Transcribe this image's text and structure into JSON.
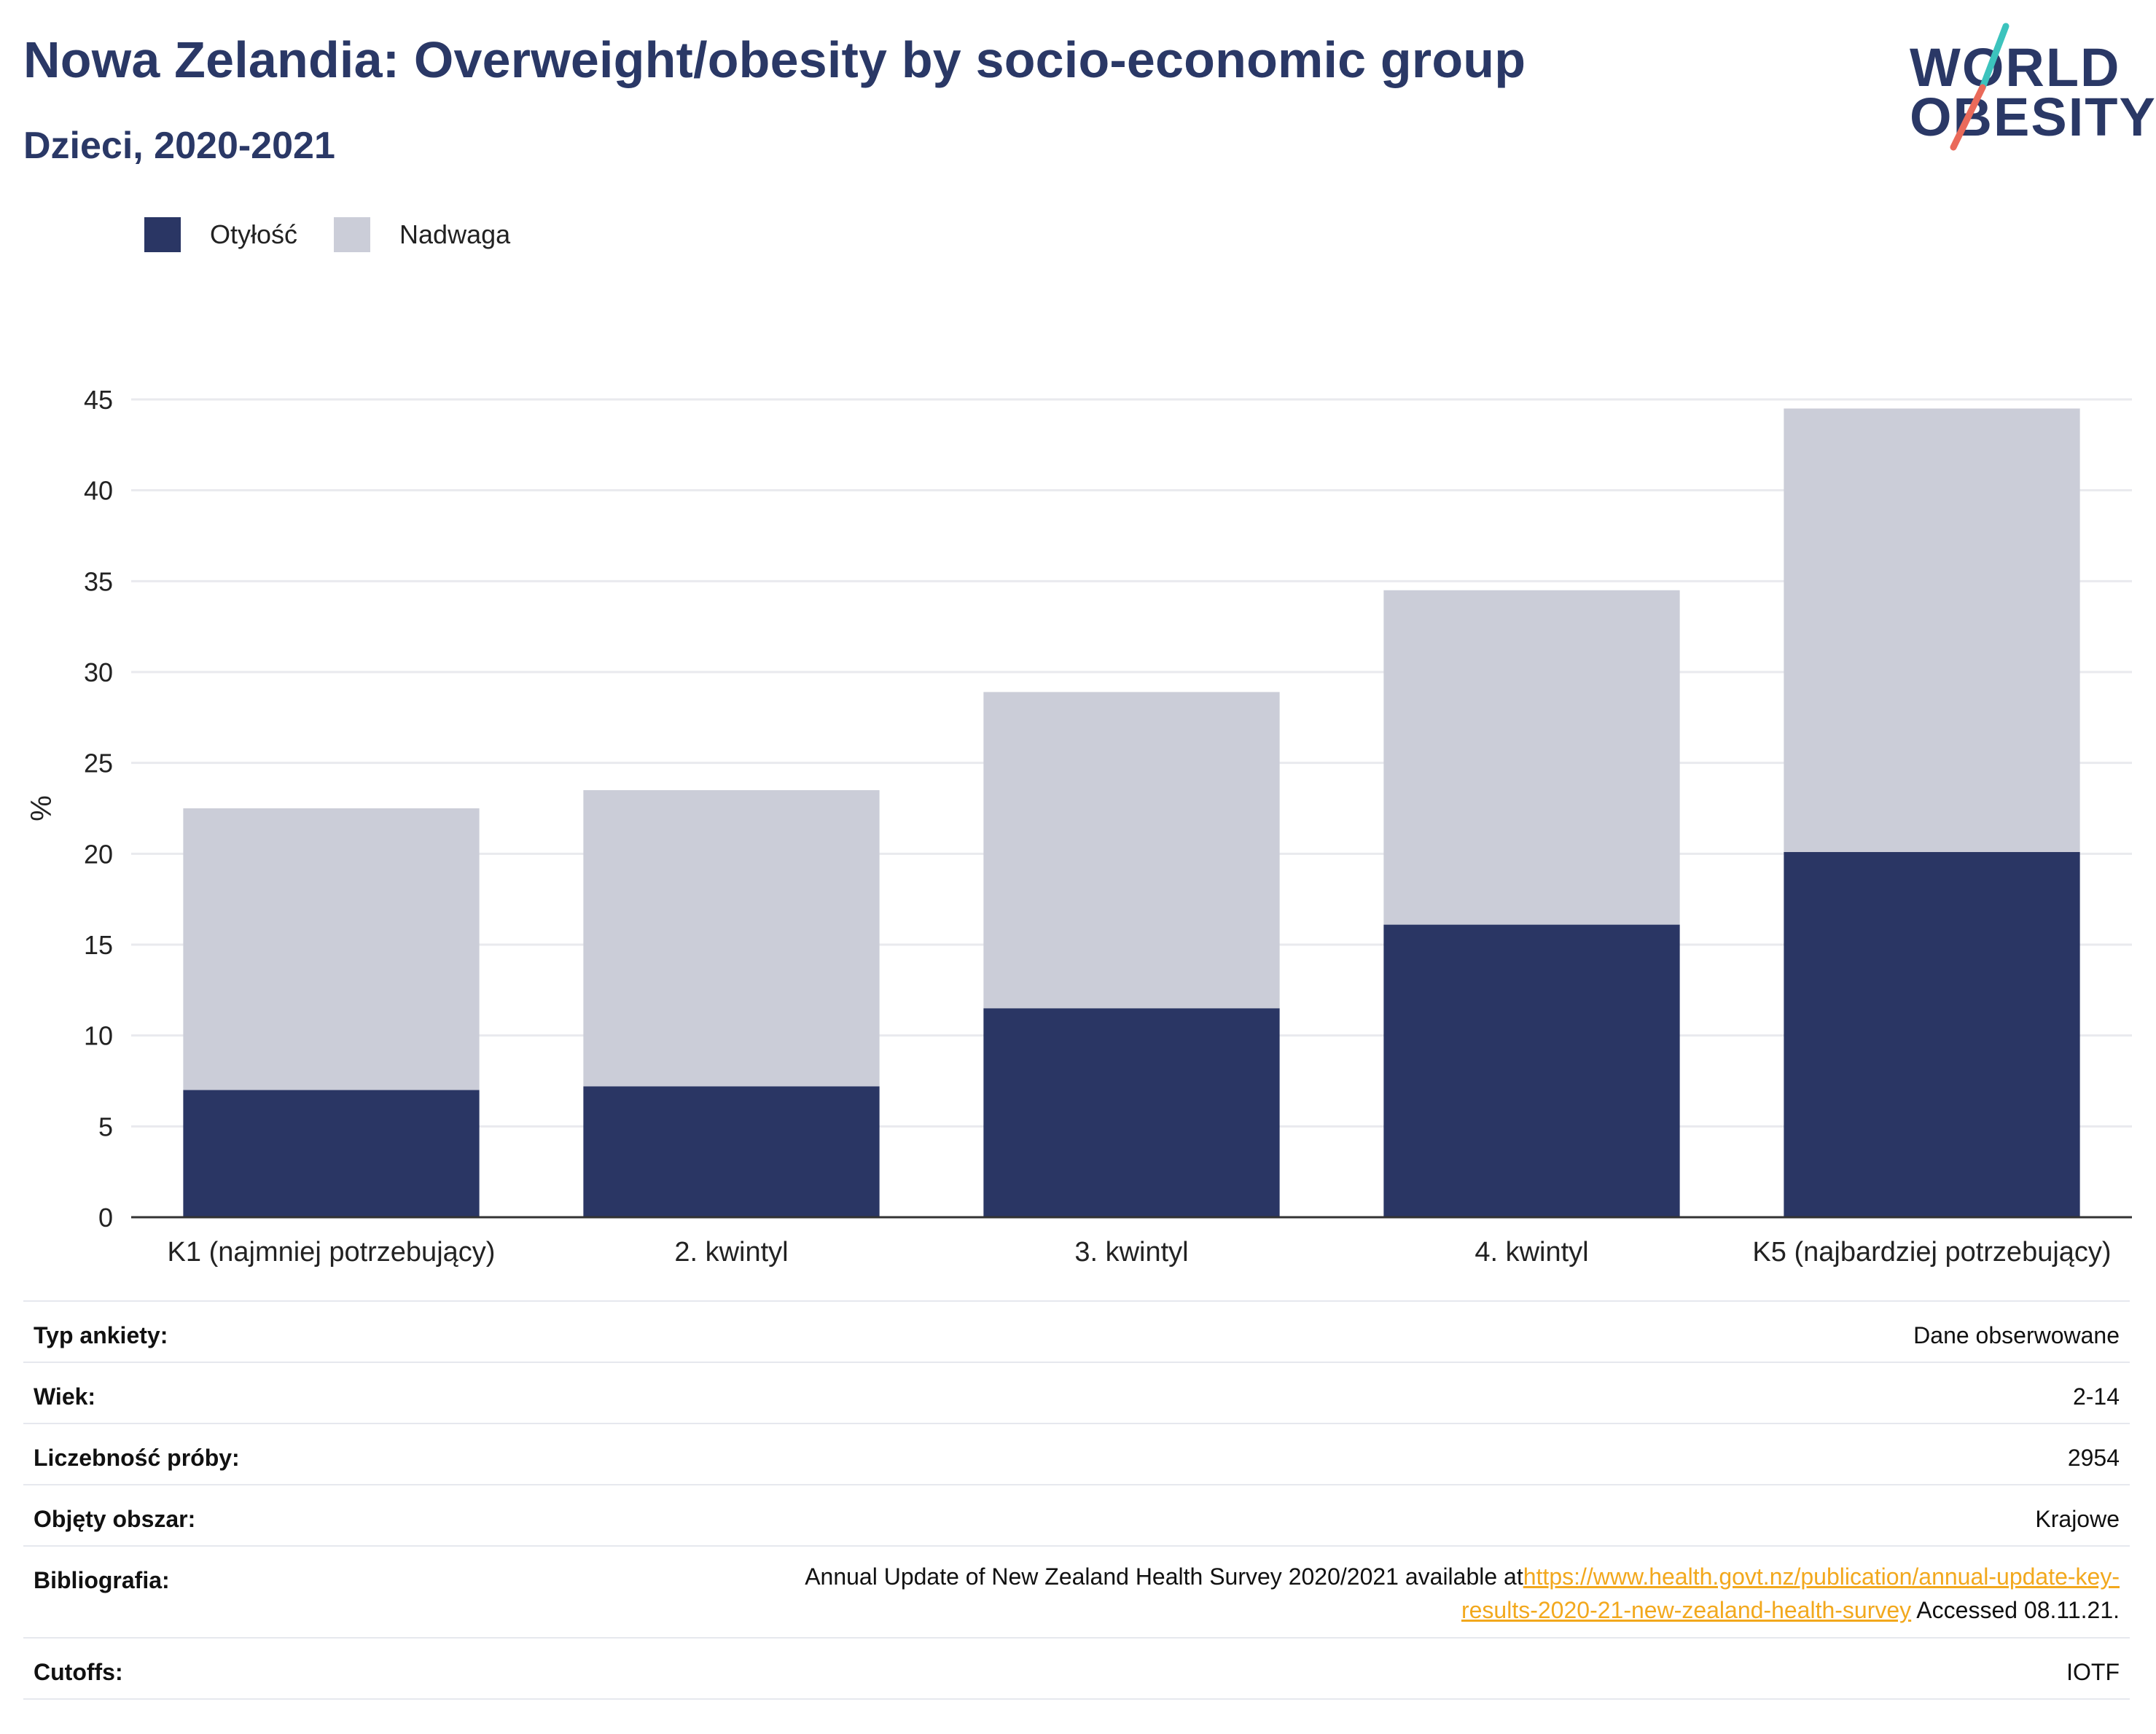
{
  "header": {
    "title": "Nowa Zelandia: Overweight/obesity by socio-economic group",
    "subtitle": "Dzieci, 2020-2021"
  },
  "logo": {
    "line1": "WORLD",
    "line2": "OBESITY"
  },
  "colors": {
    "obesity": "#2a3664",
    "overweight": "#cbcdd8",
    "title": "#2a3866",
    "link": "#f2a81d",
    "logo_teal": "#3cc3bd",
    "logo_coral": "#ea6a5a"
  },
  "legend": [
    {
      "label": "Otyłość",
      "color": "#2a3664"
    },
    {
      "label": "Nadwaga",
      "color": "#cbcdd8"
    }
  ],
  "chart_data": {
    "type": "bar",
    "stacked": true,
    "categories": [
      "K1 (najmniej potrzebujący)",
      "2. kwintyl",
      "3. kwintyl",
      "4. kwintyl",
      "K5 (najbardziej potrzebujący)"
    ],
    "series": [
      {
        "name": "Otyłość",
        "values": [
          7.0,
          7.2,
          11.5,
          16.1,
          20.1
        ]
      },
      {
        "name": "Nadwaga",
        "values": [
          15.5,
          16.3,
          17.4,
          18.4,
          24.4
        ]
      }
    ],
    "ylabel": "%",
    "ylim": [
      0,
      45
    ],
    "yticks": [
      0,
      5,
      10,
      15,
      20,
      25,
      30,
      35,
      40,
      45
    ],
    "grid": true,
    "legend_position": "top-left"
  },
  "info": {
    "rows": [
      {
        "key": "Typ ankiety:",
        "value": "Dane obserwowane"
      },
      {
        "key": "Wiek:",
        "value": "2-14"
      },
      {
        "key": "Liczebność próby:",
        "value": "2954"
      },
      {
        "key": "Objęty obszar:",
        "value": "Krajowe"
      }
    ],
    "bibliography": {
      "key": "Bibliografia:",
      "text": "Annual Update of New Zealand Health Survey 2020/2021 available at",
      "link_line1": "https://www.health.govt.nz/publication/annual-update-key-",
      "link_line2": "results-2020-21-new-zealand-health-survey",
      "suffix": " Accessed 08.11.21."
    },
    "cutoffs": {
      "key": "Cutoffs:",
      "value": "IOTF"
    }
  }
}
